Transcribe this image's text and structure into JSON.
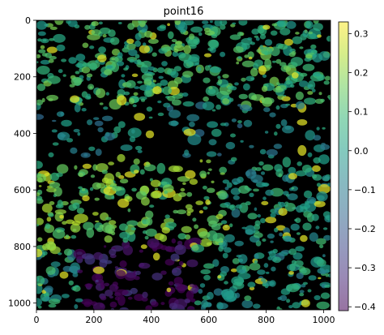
{
  "chart_data": {
    "type": "heatmap",
    "title": "point16",
    "xlabel": "",
    "ylabel": "",
    "xlim": [
      0,
      1024
    ],
    "ylim": [
      1024,
      0
    ],
    "x_ticks": [
      0,
      200,
      400,
      600,
      800,
      1000
    ],
    "y_ticks": [
      0,
      200,
      400,
      600,
      800,
      1000
    ],
    "colorbar": {
      "colormap": "viridis",
      "alpha_blended_over_image": true,
      "min": -0.41,
      "max": 0.33,
      "ticks": [
        0.3,
        0.2,
        0.1,
        0.0,
        -0.1,
        -0.2,
        -0.3,
        -0.4
      ],
      "tick_labels": [
        "0.3",
        "0.2",
        "0.1",
        "0.0",
        "−0.1",
        "−0.2",
        "−0.3",
        "−0.4"
      ]
    },
    "grid": false,
    "background_color": "#000000",
    "regions": [
      {
        "description": "top band: dense teal/green cells",
        "x": [
          0,
          1024
        ],
        "y": [
          0,
          340
        ],
        "mean_value": 0.08
      },
      {
        "description": "middle band: sparse dark stroma",
        "x": [
          0,
          1024
        ],
        "y": [
          300,
          520
        ],
        "mean_value": -0.05
      },
      {
        "description": "lower-left: green/yellow-green tumor cells",
        "x": [
          0,
          700
        ],
        "y": [
          480,
          820
        ],
        "mean_value": 0.15
      },
      {
        "description": "bottom-left: magenta low-value patch",
        "x": [
          150,
          560
        ],
        "y": [
          780,
          1024
        ],
        "mean_value": -0.38
      },
      {
        "description": "right side: scattered teal cells",
        "x": [
          650,
          1024
        ],
        "y": [
          480,
          1024
        ],
        "mean_value": 0.0
      }
    ]
  }
}
